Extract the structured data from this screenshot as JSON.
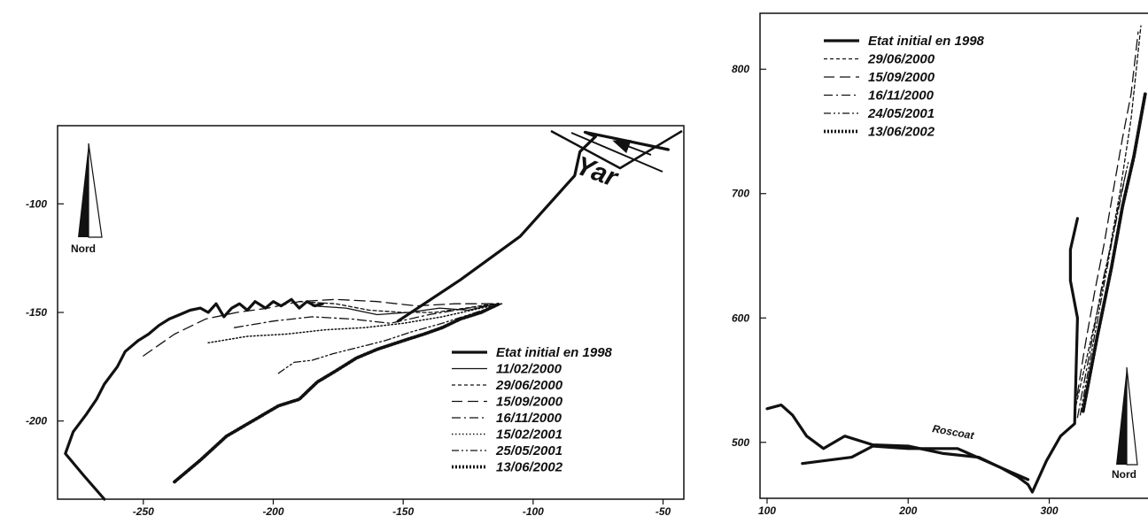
{
  "chart_data": [
    {
      "type": "line",
      "x_ticks": [
        -250,
        -200,
        -150,
        -100,
        -50
      ],
      "y_ticks": [
        -100,
        -150,
        -200
      ],
      "xlim": [
        -283,
        -42
      ],
      "ylim": [
        -236,
        -64
      ],
      "annotations": {
        "river": "Yar",
        "north": "Nord"
      },
      "legend_position": "bottom-right",
      "series": [
        {
          "name": "Etat initial en 1998",
          "style": "thick",
          "x": [
            -265,
            -273,
            -280,
            -277,
            -272,
            -268,
            -265,
            -260,
            -257,
            -252,
            -248,
            -244,
            -240,
            -236,
            -232,
            -228,
            -225,
            -222,
            -219,
            -216,
            -213,
            -210,
            -207,
            -203,
            -200,
            -197,
            -193,
            -190,
            -187,
            -184,
            -181
          ],
          "y": [
            -236,
            -225,
            -215,
            -205,
            -197,
            -190,
            -183,
            -175,
            -168,
            -163,
            -160,
            -156,
            -153,
            -151,
            -149,
            -148,
            -150,
            -146,
            -152,
            -148,
            -146,
            -149,
            -145,
            -148,
            -145,
            -147,
            -144,
            -148,
            -145,
            -147,
            -146
          ]
        },
        {
          "name": "11/02/2000",
          "style": "solid-thin",
          "x": [
            -185,
            -172,
            -160,
            -148,
            -136,
            -125,
            -114
          ],
          "y": [
            -147,
            -148,
            -151,
            -150,
            -148,
            -149,
            -146
          ]
        },
        {
          "name": "29/06/2000",
          "style": "short-dash",
          "x": [
            -190,
            -176,
            -163,
            -150,
            -138,
            -126,
            -115
          ],
          "y": [
            -145,
            -146,
            -149,
            -150,
            -150,
            -148,
            -146
          ]
        },
        {
          "name": "15/09/2000",
          "style": "long-dash",
          "x": [
            -250,
            -238,
            -226,
            -214,
            -202,
            -190,
            -176,
            -160,
            -145,
            -130,
            -115
          ],
          "y": [
            -170,
            -160,
            -153,
            -150,
            -148,
            -145,
            -144,
            -145,
            -147,
            -146,
            -146
          ]
        },
        {
          "name": "16/11/2000",
          "style": "dash-dot",
          "x": [
            -215,
            -200,
            -185,
            -170,
            -155,
            -140,
            -125,
            -112
          ],
          "y": [
            -157,
            -154,
            -152,
            -153,
            -155,
            -151,
            -148,
            -146
          ]
        },
        {
          "name": "15/02/2001",
          "style": "dotted",
          "x": [
            -225,
            -210,
            -195,
            -180,
            -165,
            -150,
            -135,
            -120,
            -112
          ],
          "y": [
            -164,
            -161,
            -160,
            -158,
            -157,
            -155,
            -152,
            -148,
            -146
          ]
        },
        {
          "name": "25/05/2001",
          "style": "dash-dot-dot",
          "x": [
            -198,
            -192,
            -185,
            -177,
            -167,
            -157,
            -147,
            -135,
            -122,
            -112
          ],
          "y": [
            -178,
            -173,
            -172,
            -169,
            -166,
            -163,
            -159,
            -155,
            -150,
            -146
          ]
        },
        {
          "name": "13/06/2002",
          "style": "thick-dotted",
          "x": [
            -238,
            -228,
            -218,
            -208,
            -198,
            -190,
            -183,
            -176,
            -168,
            -160,
            -150,
            -142,
            -135,
            -128,
            -120,
            -113
          ],
          "y": [
            -228,
            -218,
            -207,
            -200,
            -193,
            -190,
            -182,
            -177,
            -171,
            -167,
            -163,
            -160,
            -157,
            -153,
            -150,
            -146
          ]
        },
        {
          "name": "",
          "style": "thick",
          "x": [
            -152,
            -128,
            -105,
            -84,
            -82,
            -76,
            -80,
            -68,
            -48
          ],
          "y": [
            -154,
            -135,
            -115,
            -87,
            -76,
            -69,
            -67,
            -70,
            -75
          ]
        }
      ]
    },
    {
      "type": "line",
      "x_ticks": [
        100,
        200,
        300
      ],
      "y_ticks": [
        800,
        700,
        600,
        500
      ],
      "xlim": [
        95,
        370
      ],
      "ylim": [
        455,
        845
      ],
      "annotations": {
        "place": "Roscoat",
        "north": "Nord"
      },
      "legend_position": "top-left",
      "series": [
        {
          "name": "Etat initial en 1998",
          "style": "thick",
          "x": [
            100,
            110,
            118,
            128,
            140,
            155,
            175,
            200,
            225,
            250,
            265,
            278,
            285,
            288,
            298,
            308,
            318,
            320,
            315,
            315,
            318,
            320
          ],
          "y": [
            527,
            530,
            522,
            505,
            495,
            505,
            498,
            497,
            491,
            488,
            480,
            472,
            466,
            460,
            485,
            505,
            515,
            600,
            630,
            655,
            670,
            680
          ]
        },
        {
          "name": "",
          "style": "thick",
          "x": [
            125,
            160,
            175,
            200,
            235,
            255,
            285
          ],
          "y": [
            483,
            488,
            497,
            495,
            495,
            485,
            470
          ]
        },
        {
          "name": "29/06/2000",
          "style": "short-dash",
          "x": [
            318,
            327,
            335,
            342,
            350,
            358,
            365
          ],
          "y": [
            525,
            570,
            610,
            650,
            700,
            760,
            835
          ]
        },
        {
          "name": "15/09/2000",
          "style": "long-dash",
          "x": [
            318,
            325,
            332,
            339,
            345,
            352,
            358,
            363
          ],
          "y": [
            525,
            575,
            620,
            660,
            700,
            745,
            780,
            830
          ]
        },
        {
          "name": "16/11/2000",
          "style": "dash-dot",
          "x": [
            320,
            330,
            338,
            346,
            354
          ],
          "y": [
            520,
            580,
            630,
            670,
            715
          ]
        },
        {
          "name": "24/05/2001",
          "style": "dash-dot-dot",
          "x": [
            322,
            332,
            341,
            349,
            356
          ],
          "y": [
            522,
            585,
            640,
            690,
            725
          ]
        },
        {
          "name": "13/06/2002",
          "style": "thick-dotted",
          "x": [
            324,
            334,
            344,
            352,
            360,
            368
          ],
          "y": [
            525,
            585,
            640,
            690,
            730,
            780
          ]
        }
      ]
    }
  ]
}
